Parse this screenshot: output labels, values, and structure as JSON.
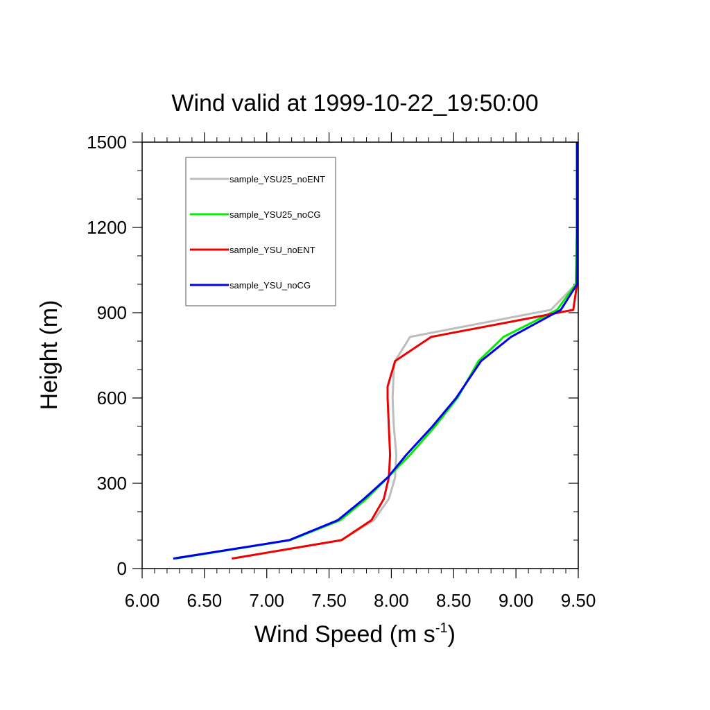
{
  "chart_data": {
    "type": "line",
    "title": "Wind valid at 1999-10-22_19:50:00",
    "xlabel": "Wind Speed (m s",
    "xlabel_sup": "-1",
    "xlabel_end": ")",
    "ylabel": "Height (m)",
    "xlim": [
      6.0,
      9.5
    ],
    "ylim": [
      0,
      1500
    ],
    "xticks": [
      6.0,
      6.5,
      7.0,
      7.5,
      8.0,
      8.5,
      9.0,
      9.5
    ],
    "xtick_labels": [
      "6.00",
      "6.50",
      "7.00",
      "7.50",
      "8.00",
      "8.50",
      "9.00",
      "9.50"
    ],
    "yticks": [
      0,
      300,
      600,
      900,
      1200,
      1500
    ],
    "ytick_labels": [
      "0",
      "300",
      "600",
      "900",
      "1200",
      "1500"
    ],
    "grid": false,
    "legend_position": "top-left",
    "series": [
      {
        "name": "sample_YSU25_noENT",
        "color": "#bdbdbd",
        "points": [
          [
            6.72,
            35
          ],
          [
            7.6,
            100
          ],
          [
            7.86,
            170
          ],
          [
            7.98,
            245
          ],
          [
            8.03,
            320
          ],
          [
            8.04,
            400
          ],
          [
            8.02,
            500
          ],
          [
            8.01,
            600
          ],
          [
            8.02,
            700
          ],
          [
            8.03,
            730
          ],
          [
            8.15,
            815
          ],
          [
            9.28,
            910
          ],
          [
            9.48,
            1000
          ],
          [
            9.49,
            1200
          ],
          [
            9.49,
            1500
          ]
        ]
      },
      {
        "name": "sample_YSU25_noCG",
        "color": "#00ee00",
        "points": [
          [
            6.27,
            35
          ],
          [
            7.19,
            100
          ],
          [
            7.59,
            170
          ],
          [
            7.8,
            245
          ],
          [
            7.97,
            320
          ],
          [
            8.15,
            400
          ],
          [
            8.35,
            500
          ],
          [
            8.53,
            600
          ],
          [
            8.7,
            730
          ],
          [
            8.9,
            815
          ],
          [
            9.33,
            910
          ],
          [
            9.48,
            1000
          ],
          [
            9.49,
            1200
          ],
          [
            9.49,
            1500
          ]
        ]
      },
      {
        "name": "sample_YSU_noENT",
        "color": "#ee0000",
        "points": [
          [
            6.72,
            35
          ],
          [
            7.6,
            100
          ],
          [
            7.84,
            170
          ],
          [
            7.94,
            245
          ],
          [
            7.98,
            320
          ],
          [
            7.99,
            400
          ],
          [
            7.98,
            500
          ],
          [
            7.97,
            600
          ],
          [
            7.97,
            640
          ],
          [
            8.03,
            730
          ],
          [
            8.32,
            815
          ],
          [
            9.46,
            910
          ],
          [
            9.49,
            1000
          ]
        ]
      },
      {
        "name": "sample_YSU_noCG",
        "color": "#0000ee",
        "points": [
          [
            6.25,
            35
          ],
          [
            7.18,
            100
          ],
          [
            7.57,
            170
          ],
          [
            7.78,
            245
          ],
          [
            7.97,
            320
          ],
          [
            8.12,
            400
          ],
          [
            8.33,
            500
          ],
          [
            8.52,
            600
          ],
          [
            8.72,
            730
          ],
          [
            8.96,
            815
          ],
          [
            9.36,
            910
          ],
          [
            9.49,
            1000
          ],
          [
            9.49,
            1200
          ],
          [
            9.49,
            1500
          ]
        ]
      }
    ]
  }
}
